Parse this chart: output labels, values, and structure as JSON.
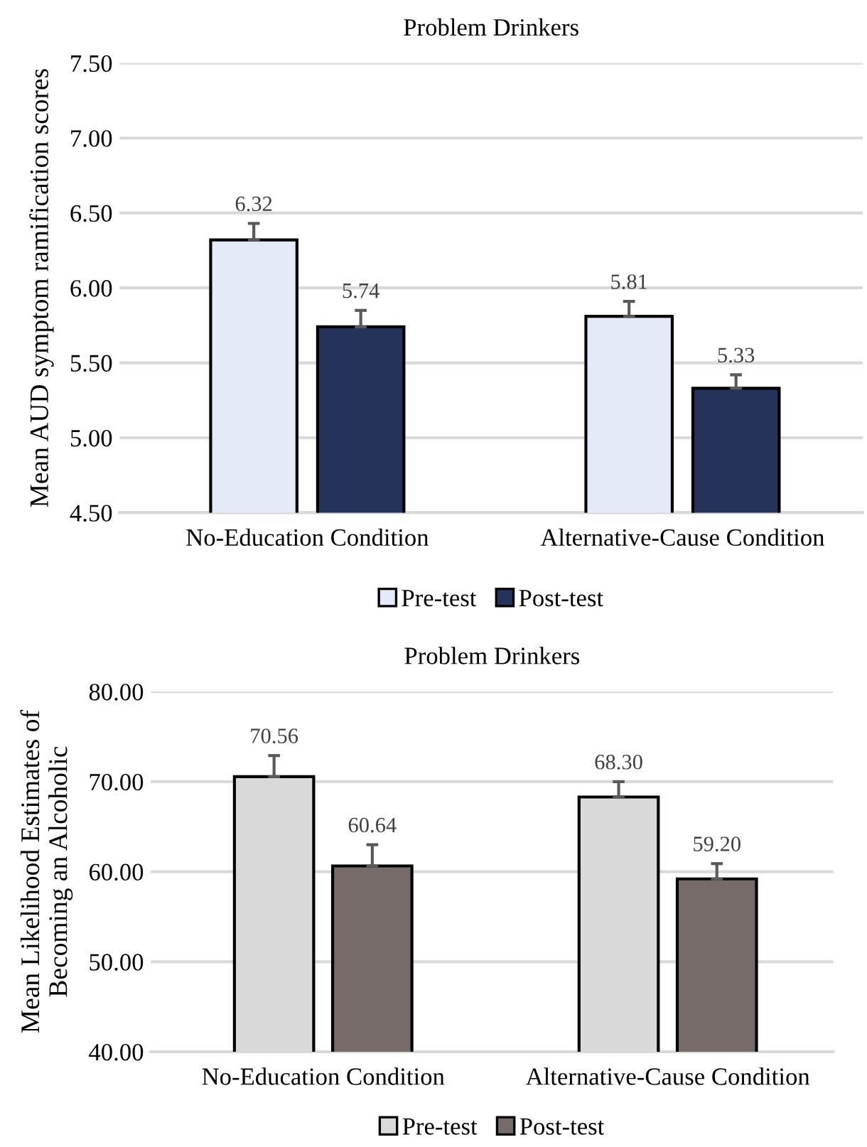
{
  "chart_data": [
    {
      "type": "bar",
      "title": "Problem Drinkers",
      "ylabel": "Mean AUD symptom ramification scores",
      "categories": [
        "No-Education Condition",
        "Alternative-Cause Condition"
      ],
      "series": [
        {
          "name": "Pre-test",
          "color": "#e4eaf8",
          "values": [
            6.32,
            5.81
          ],
          "errors": [
            [
              6.32,
              6.43
            ],
            [
              5.81,
              5.91
            ]
          ]
        },
        {
          "name": "Post-test",
          "color": "#25325a",
          "values": [
            5.74,
            5.33
          ],
          "errors": [
            [
              5.74,
              5.85
            ],
            [
              5.33,
              5.42
            ]
          ]
        }
      ],
      "ylim": [
        4.5,
        7.5
      ],
      "yticks": [
        {
          "value": 4.5,
          "label": "4.50"
        },
        {
          "value": 5.0,
          "label": "5.00"
        },
        {
          "value": 5.5,
          "label": "5.50"
        },
        {
          "value": 6.0,
          "label": "6.00"
        },
        {
          "value": 6.5,
          "label": "6.50"
        },
        {
          "value": 7.0,
          "label": "7.00"
        },
        {
          "value": 7.5,
          "label": "7.50"
        }
      ],
      "grid": "y",
      "legend": "bottom",
      "data_labels": true
    },
    {
      "type": "bar",
      "title": "Problem Drinkers",
      "ylabel": "Mean Likelihood Estimates of\nBecoming an Alcoholic",
      "categories": [
        "No-Education Condition",
        "Alternative-Cause Condition"
      ],
      "series": [
        {
          "name": "Pre-test",
          "color": "#d9d9d9",
          "values": [
            70.56,
            68.3
          ],
          "value_labels": [
            "70.56",
            "68.30"
          ],
          "errors": [
            [
              70.56,
              72.9
            ],
            [
              68.3,
              70.0
            ]
          ]
        },
        {
          "name": "Post-test",
          "color": "#776b6a",
          "values": [
            60.64,
            59.2
          ],
          "value_labels": [
            "60.64",
            "59.20"
          ],
          "errors": [
            [
              60.64,
              63.0
            ],
            [
              59.2,
              60.9
            ]
          ]
        }
      ],
      "ylim": [
        40,
        80
      ],
      "yticks": [
        {
          "value": 40,
          "label": "40.00"
        },
        {
          "value": 50,
          "label": "50.00"
        },
        {
          "value": 60,
          "label": "60.00"
        },
        {
          "value": 70,
          "label": "70.00"
        },
        {
          "value": 80,
          "label": "80.00"
        }
      ],
      "grid": "y",
      "legend": "bottom"
    }
  ]
}
